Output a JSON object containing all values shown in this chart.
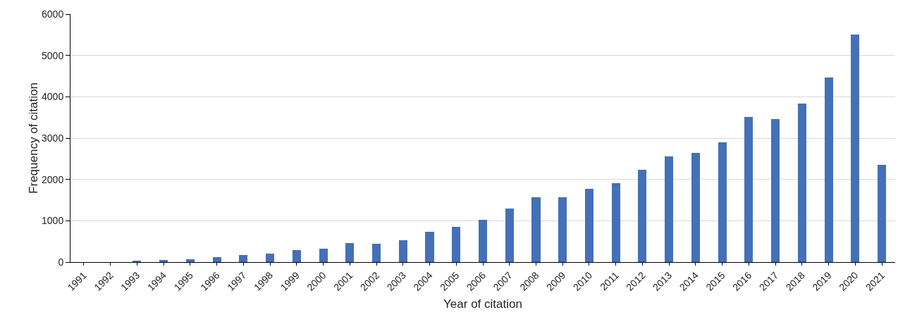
{
  "chart_data": {
    "type": "bar",
    "xlabel": "Year of citation",
    "ylabel": "Frequency of citation",
    "categories": [
      "1991",
      "1992",
      "1993",
      "1994",
      "1995",
      "1996",
      "1997",
      "1998",
      "1999",
      "2000",
      "2001",
      "2002",
      "2003",
      "2004",
      "2005",
      "2006",
      "2007",
      "2008",
      "2009",
      "2010",
      "2011",
      "2012",
      "2013",
      "2014",
      "2015",
      "2016",
      "2017",
      "2018",
      "2019",
      "2020",
      "2021"
    ],
    "values": [
      0,
      0,
      20,
      50,
      65,
      120,
      170,
      210,
      290,
      330,
      460,
      445,
      520,
      730,
      850,
      1020,
      1290,
      1575,
      1575,
      1765,
      1915,
      2240,
      2560,
      2640,
      2900,
      3510,
      3460,
      3830,
      4460,
      5510,
      2360
    ],
    "color": "#4470b8",
    "ylim": [
      0,
      6000
    ],
    "yticks": [
      0,
      1000,
      2000,
      3000,
      4000,
      5000,
      6000
    ],
    "grid": "y"
  }
}
